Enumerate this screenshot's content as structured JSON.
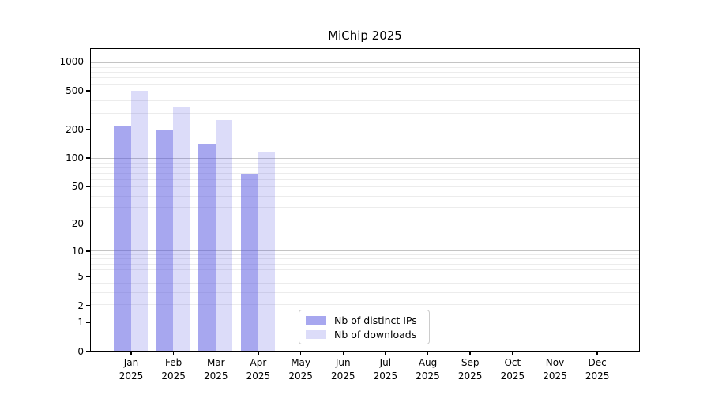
{
  "chart_data": {
    "type": "bar",
    "title": "MiChip 2025",
    "x_axis": {
      "months": [
        "Jan",
        "Feb",
        "Mar",
        "Apr",
        "May",
        "Jun",
        "Jul",
        "Aug",
        "Sep",
        "Oct",
        "Nov",
        "Dec"
      ],
      "year": "2025"
    },
    "y_axis": {
      "scale": "log1p",
      "ticks": [
        0,
        1,
        2,
        5,
        10,
        20,
        50,
        100,
        200,
        500,
        1000
      ],
      "ylim": [
        0,
        1390
      ],
      "grid": true,
      "major_gridline_values": [
        1,
        10,
        100,
        1000
      ],
      "major_gridline_color": "#c4c4c4",
      "minor_gridline_color": "#ececec"
    },
    "series": [
      {
        "name": "Nb of distinct IPs",
        "color": "#5050e0",
        "alpha": 0.5,
        "values": [
          225,
          205,
          145,
          70,
          0,
          0,
          0,
          0,
          0,
          0,
          0,
          0
        ]
      },
      {
        "name": "Nb of downloads",
        "color": "#5050e0",
        "alpha": 0.2,
        "values": [
          520,
          345,
          255,
          120,
          0,
          0,
          0,
          0,
          0,
          0,
          0,
          0
        ]
      }
    ],
    "legend": {
      "position": "inside-lower-center"
    }
  }
}
